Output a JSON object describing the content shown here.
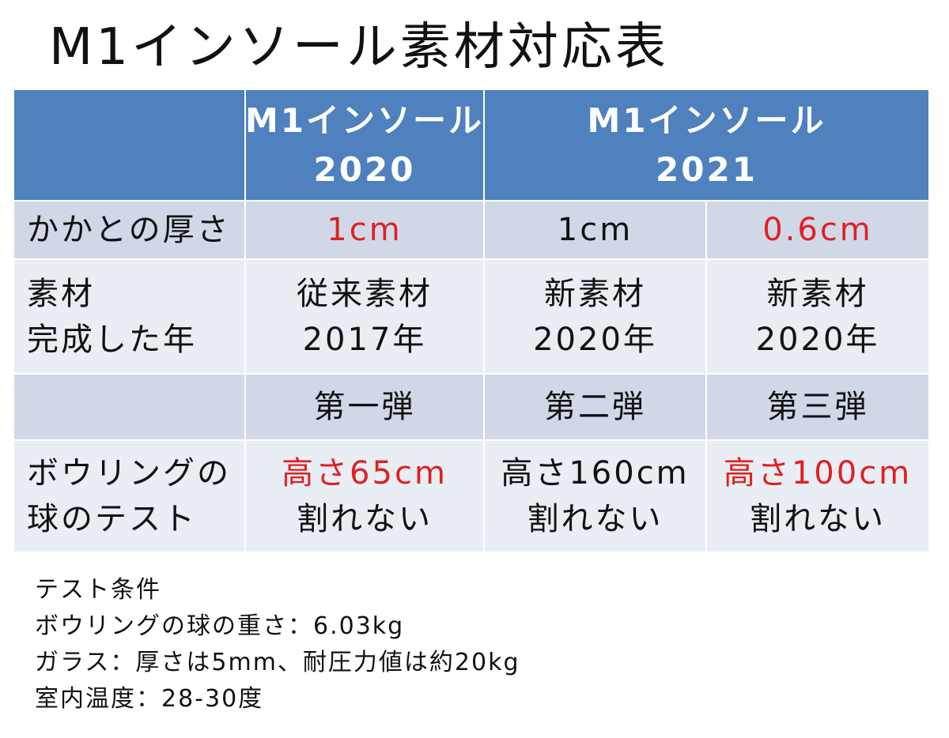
{
  "title": "M1インソール素材対応表",
  "colors": {
    "header_bg": "#4e81bd",
    "header_text": "#ffffff",
    "row_band_dark": "#d0d8e8",
    "row_band_light": "#e9edf4",
    "highlight_red": "#e02020"
  },
  "table": {
    "header": {
      "col_2020_line1": "M1インソール",
      "col_2020_line2": "2020",
      "col_2021_line1": "M1インソール",
      "col_2021_line2": "2021"
    },
    "heel": {
      "label": "かかとの厚さ",
      "v2020": "1cm",
      "v2021a": "1cm",
      "v2021b": "0.6cm"
    },
    "material": {
      "label_line1": "素材",
      "label_line2": "完成した年",
      "v2020_line1": "従来素材",
      "v2020_line2": "2017年",
      "v2021a_line1": "新素材",
      "v2021a_line2": "2020年",
      "v2021b_line1": "新素材",
      "v2021b_line2": "2020年"
    },
    "edition": {
      "v2020": "第一弾",
      "v2021a": "第二弾",
      "v2021b": "第三弾"
    },
    "bowling": {
      "label_line1": "ボウリングの",
      "label_line2": "球のテスト",
      "v2020_line1": "高さ65cm",
      "v2020_line2": "割れない",
      "v2021a_line1": "高さ160cm",
      "v2021a_line2": "割れない",
      "v2021b_line1": "高さ100cm",
      "v2021b_line2": "割れない"
    }
  },
  "notes": {
    "heading": "テスト条件",
    "line1": "ボウリングの球の重さ：6.03kg",
    "line2": "ガラス：厚さは5mm、耐圧力値は約20kg",
    "line3": "室内温度：28-30度"
  }
}
